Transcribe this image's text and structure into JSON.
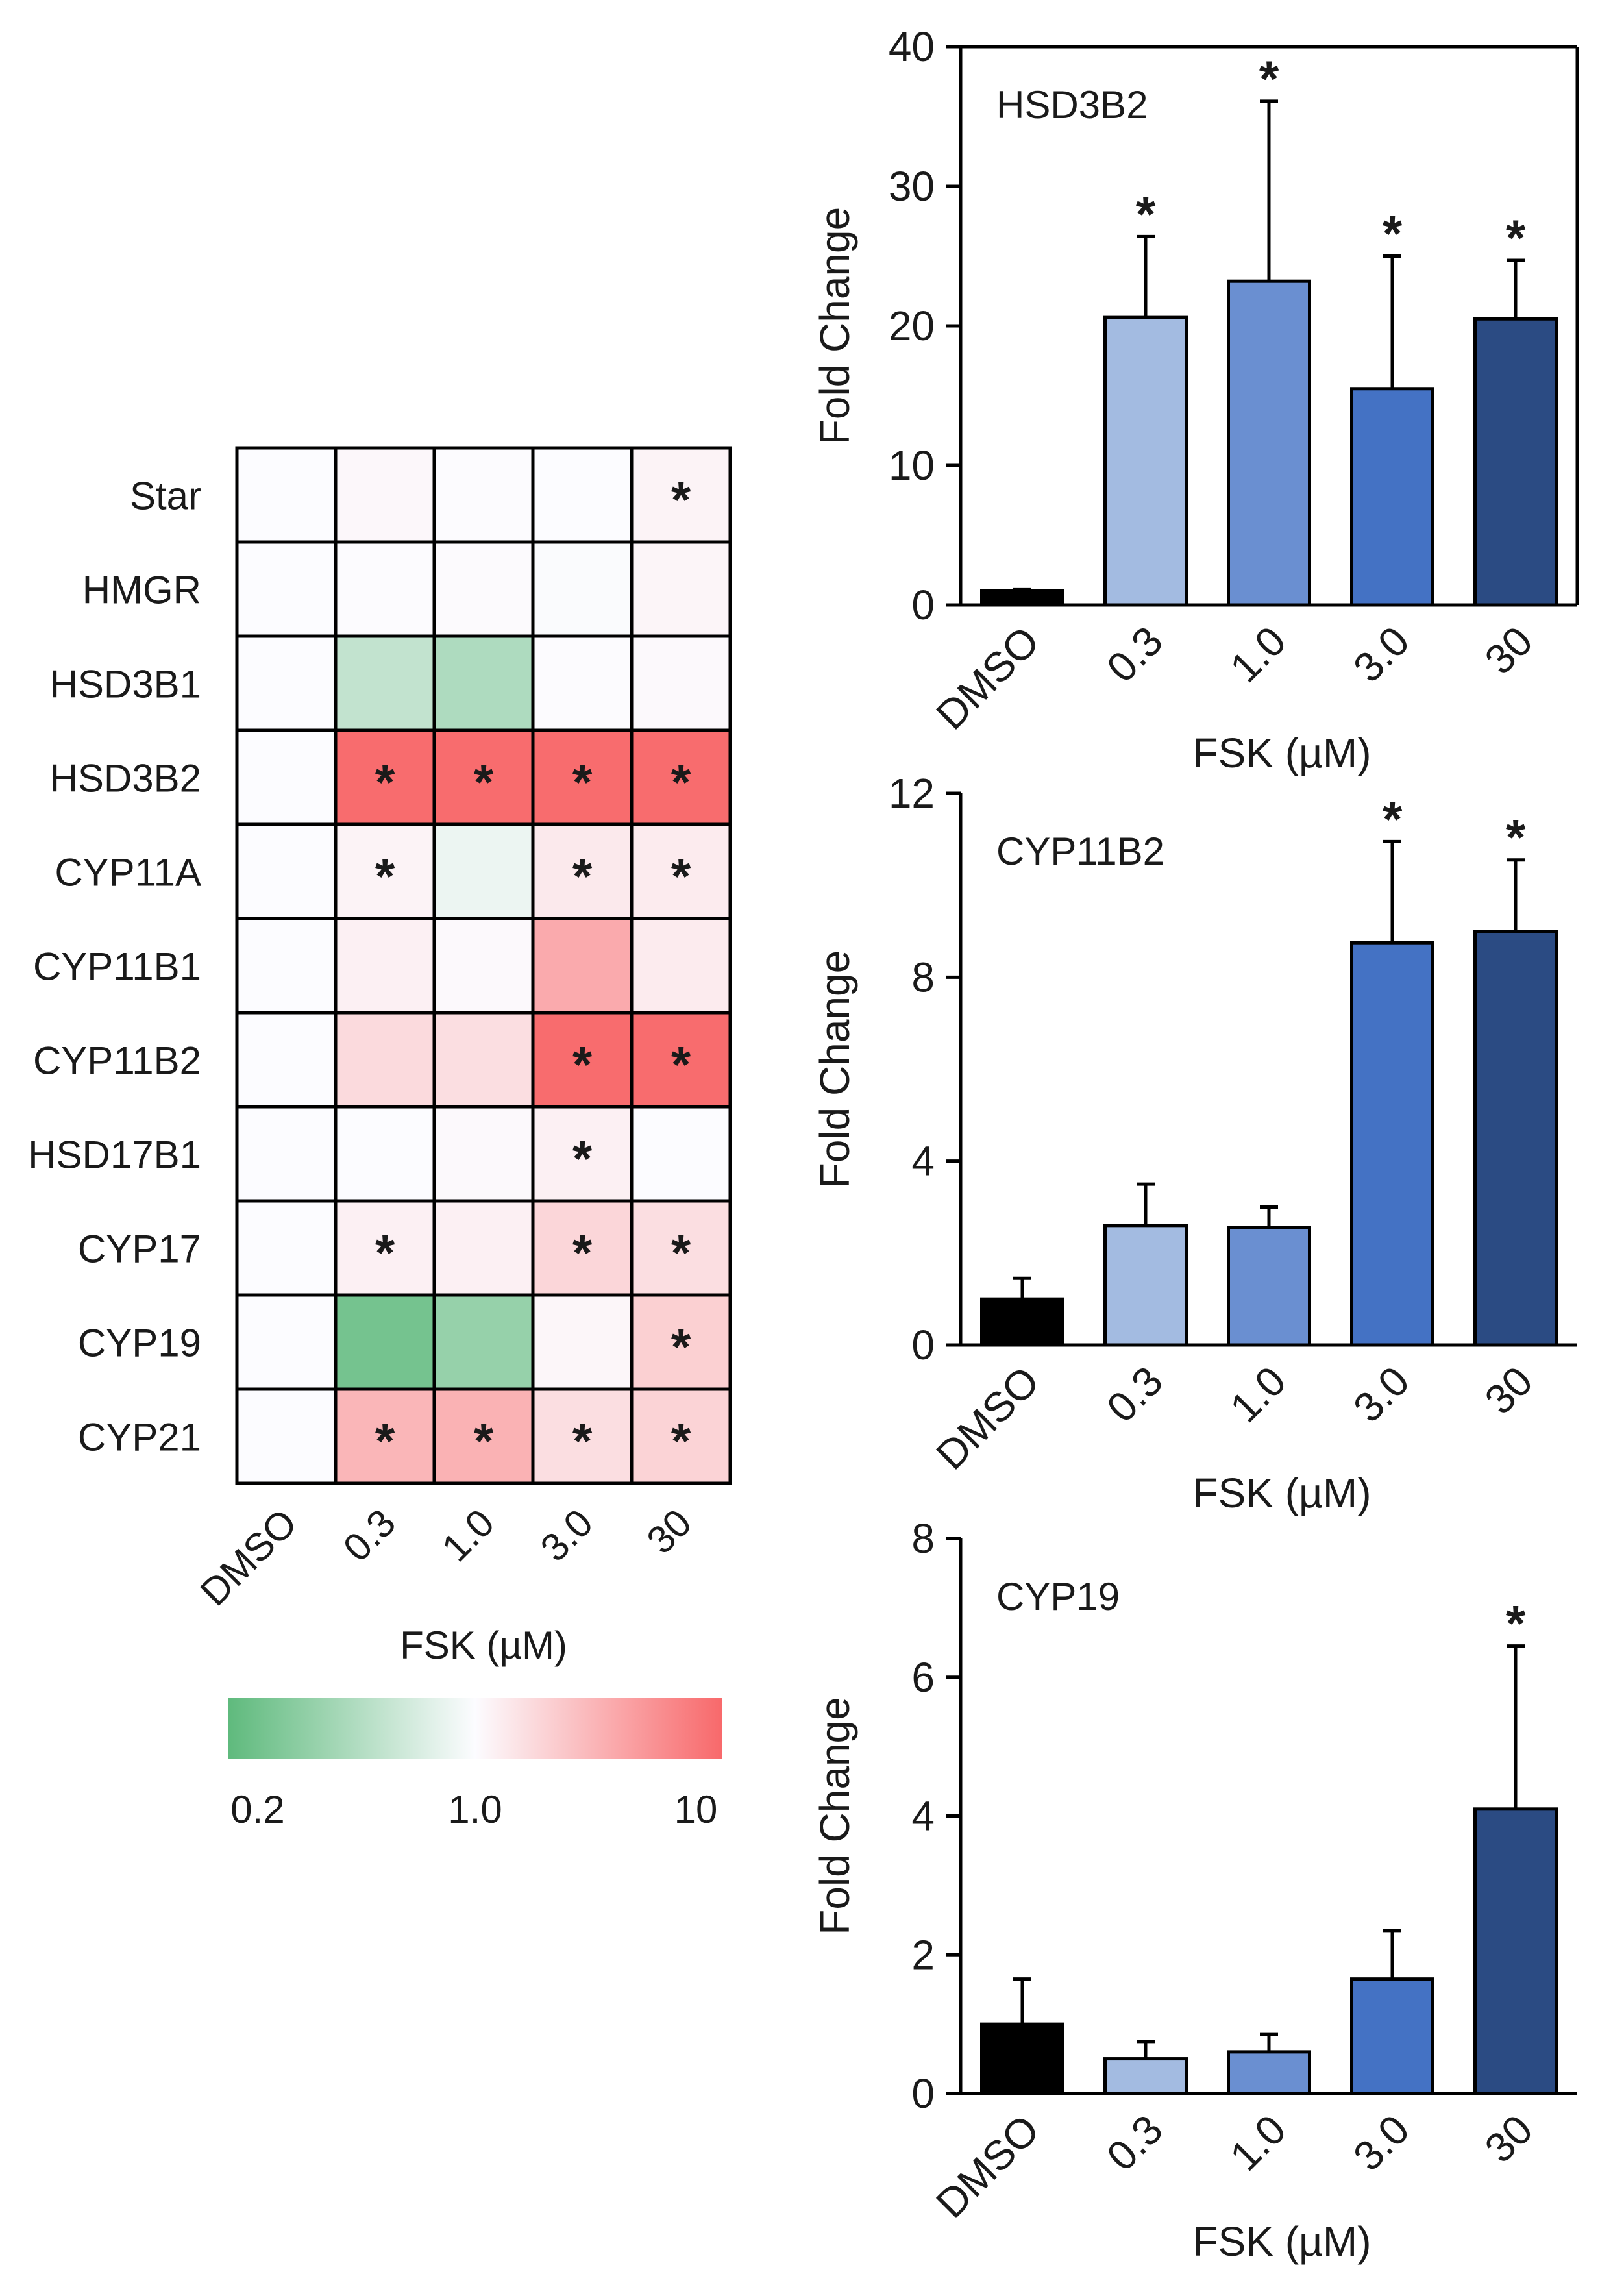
{
  "colors": {
    "green": "#5fba7d",
    "neutral": "#fcfcff",
    "red": "#f8696b",
    "bar_colors": [
      "#000000",
      "#a3bbe1",
      "#6a8fd1",
      "#4472c4",
      "#2b4b83"
    ]
  },
  "chart_data": [
    {
      "type": "heatmap",
      "title": "",
      "rows": [
        "Star",
        "HMGR",
        "HSD3B1",
        "HSD3B2",
        "CYP11A",
        "CYP11B1",
        "CYP11B2",
        "HSD17B1",
        "CYP17",
        "CYP19",
        "CYP21"
      ],
      "columns": [
        "DMSO",
        "0.3",
        "1.0",
        "3.0",
        "30"
      ],
      "values": [
        [
          1.0,
          1.08,
          1.02,
          1.0,
          1.15
        ],
        [
          1.0,
          1.02,
          1.03,
          0.98,
          1.12
        ],
        [
          1.0,
          0.55,
          0.45,
          1.02,
          1.05
        ],
        [
          1.0,
          9.5,
          9.5,
          9.5,
          9.5
        ],
        [
          1.0,
          1.15,
          0.85,
          1.35,
          1.3
        ],
        [
          1.0,
          1.2,
          1.05,
          3.6,
          1.3
        ],
        [
          1.0,
          1.7,
          1.6,
          9.5,
          9.5
        ],
        [
          1.0,
          1.0,
          1.05,
          1.2,
          1.0
        ],
        [
          1.0,
          1.2,
          1.2,
          1.8,
          1.6
        ],
        [
          1.0,
          0.25,
          0.35,
          1.1,
          2.0
        ],
        [
          1.0,
          3.0,
          3.2,
          1.6,
          1.9
        ]
      ],
      "significant": [
        [
          false,
          false,
          false,
          false,
          true
        ],
        [
          false,
          false,
          false,
          false,
          false
        ],
        [
          false,
          false,
          false,
          false,
          false
        ],
        [
          false,
          true,
          true,
          true,
          true
        ],
        [
          false,
          true,
          false,
          true,
          true
        ],
        [
          false,
          false,
          false,
          false,
          false
        ],
        [
          false,
          false,
          false,
          true,
          true
        ],
        [
          false,
          false,
          false,
          true,
          false
        ],
        [
          false,
          true,
          false,
          true,
          true
        ],
        [
          false,
          false,
          false,
          false,
          true
        ],
        [
          false,
          true,
          true,
          true,
          true
        ]
      ],
      "star_symbol": "*",
      "xlabel": "FSK (µM)",
      "color_scale": {
        "min": 0.2,
        "mid": 1.0,
        "max": 10,
        "tick_labels": [
          "0.2",
          "1.0",
          "10"
        ]
      }
    },
    {
      "type": "bar",
      "title": "HSD3B2",
      "categories": [
        "DMSO",
        "0.3",
        "1.0",
        "3.0",
        "30"
      ],
      "values": [
        1.0,
        20.6,
        23.2,
        15.5,
        20.5
      ],
      "errors": [
        0.1,
        5.8,
        12.9,
        9.5,
        4.2
      ],
      "significant": [
        false,
        true,
        true,
        true,
        true
      ],
      "xlabel": "FSK (µM)",
      "ylabel": "Fold Change",
      "ylim": [
        0,
        40
      ],
      "yticks": [
        0,
        10,
        20,
        30,
        40
      ],
      "ytick_labels": [
        "0",
        "10",
        "20",
        "30",
        "40"
      ]
    },
    {
      "type": "bar",
      "title": "CYP11B2",
      "categories": [
        "DMSO",
        "0.3",
        "1.0",
        "3.0",
        "30"
      ],
      "values": [
        1.0,
        2.6,
        2.55,
        8.75,
        9.0
      ],
      "errors": [
        0.45,
        0.9,
        0.45,
        2.2,
        1.55
      ],
      "significant": [
        false,
        false,
        false,
        true,
        true
      ],
      "xlabel": "FSK (µM)",
      "ylabel": "Fold Change",
      "ylim": [
        0,
        12
      ],
      "yticks": [
        0,
        4,
        8,
        12
      ],
      "ytick_labels": [
        "0",
        "4",
        "8",
        "12"
      ]
    },
    {
      "type": "bar",
      "title": "CYP19",
      "categories": [
        "DMSO",
        "0.3",
        "1.0",
        "3.0",
        "30"
      ],
      "values": [
        1.0,
        0.5,
        0.6,
        1.65,
        4.1
      ],
      "errors": [
        0.65,
        0.25,
        0.25,
        0.7,
        2.35
      ],
      "significant": [
        false,
        false,
        false,
        false,
        true
      ],
      "xlabel": "FSK (µM)",
      "ylabel": "Fold Change",
      "ylim": [
        0,
        8
      ],
      "yticks": [
        0,
        2,
        4,
        6,
        8
      ],
      "ytick_labels": [
        "0",
        "2",
        "4",
        "6",
        "8"
      ]
    }
  ]
}
